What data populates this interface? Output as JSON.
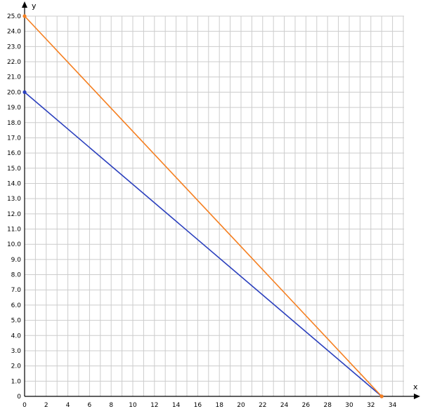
{
  "chart_data": {
    "type": "line",
    "xlabel": "x",
    "ylabel": "y",
    "xlim": [
      0,
      35
    ],
    "ylim": [
      0,
      25
    ],
    "x_ticks": [
      0,
      2,
      4,
      6,
      8,
      10,
      12,
      14,
      16,
      18,
      20,
      22,
      24,
      26,
      28,
      30,
      32,
      34
    ],
    "y_ticks": [
      "0",
      "1.0",
      "2.0",
      "3.0",
      "4.0",
      "5.0",
      "6.0",
      "7.0",
      "8.0",
      "9.0",
      "10.0",
      "11.0",
      "12.0",
      "13.0",
      "14.0",
      "15.0",
      "16.0",
      "17.0",
      "18.0",
      "19.0",
      "20.0",
      "21.0",
      "22.0",
      "23.0",
      "24.0",
      "25.0"
    ],
    "grid": true,
    "series": [
      {
        "color": "#2a3fbd",
        "points": [
          [
            0,
            20
          ],
          [
            33,
            0
          ]
        ]
      },
      {
        "color": "#f57f20",
        "points": [
          [
            0,
            25
          ],
          [
            33,
            0
          ]
        ]
      }
    ]
  }
}
